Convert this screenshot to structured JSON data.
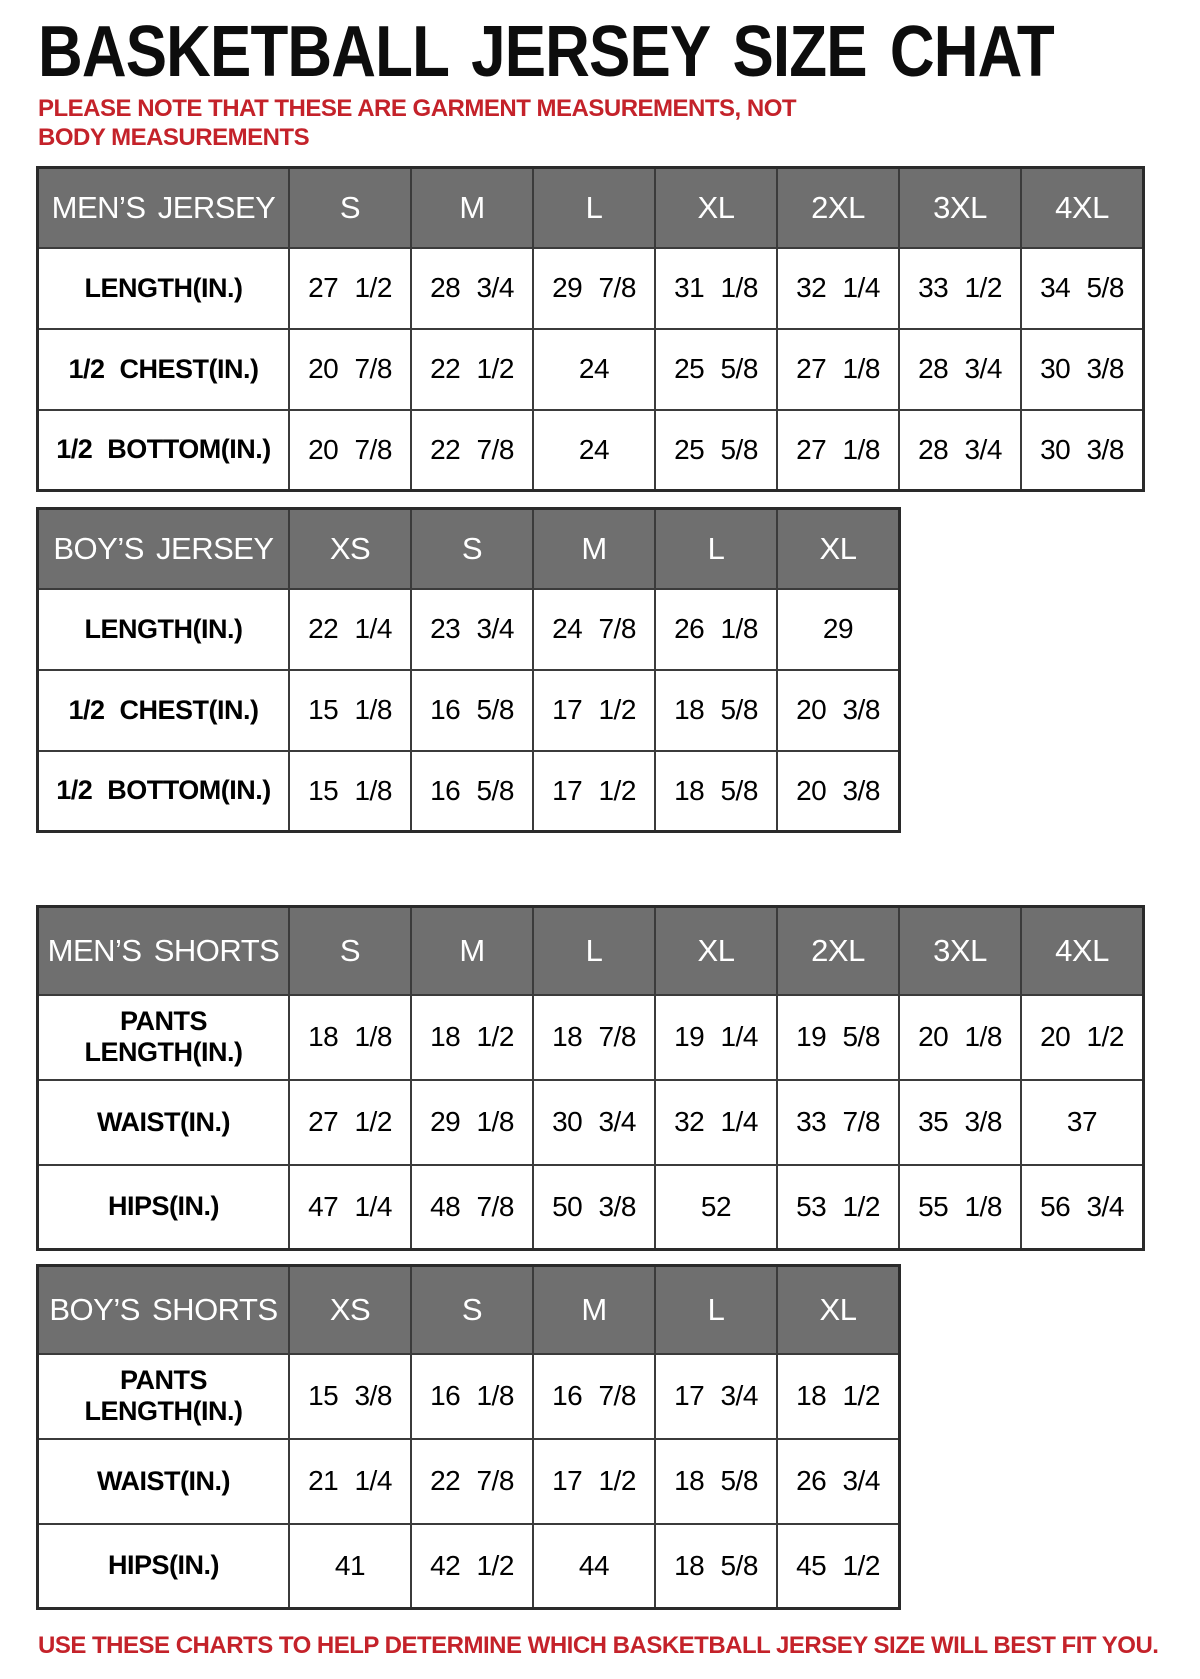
{
  "page": {
    "title": "BASKETBALL JERSEY SIZE CHAT",
    "note": "PLEASE NOTE THAT THESE ARE GARMENT MEASUREMENTS, NOT BODY MEASUREMENTS",
    "footer": "USE THESE CHARTS TO HELP DETERMINE WHICH BASKETBALL JERSEY SIZE WILL BEST FIT YOU.",
    "colors": {
      "accent_red": "#c4222a",
      "header_bg": "#6f6f6f",
      "header_text": "#ffffff",
      "border": "#3b3b3b"
    }
  },
  "tables": [
    {
      "id": "mens-jersey",
      "header": [
        "MEN’S JERSEY",
        "S",
        "M",
        "L",
        "XL",
        "2XL",
        "3XL",
        "4XL"
      ],
      "rows": [
        {
          "label": "LENGTH(IN.)",
          "values": [
            "27 1/2",
            "28 3/4",
            "29 7/8",
            "31 1/8",
            "32 1/4",
            "33 1/2",
            "34 5/8"
          ]
        },
        {
          "label": "1/2 CHEST(IN.)",
          "values": [
            "20 7/8",
            "22 1/2",
            "24",
            "25 5/8",
            "27 1/8",
            "28 3/4",
            "30 3/8"
          ]
        },
        {
          "label": "1/2 BOTTOM(IN.)",
          "values": [
            "20 7/8",
            "22 7/8",
            "24",
            "25 5/8",
            "27 1/8",
            "28 3/4",
            "30 3/8"
          ]
        }
      ]
    },
    {
      "id": "boys-jersey",
      "header": [
        "BOY’S JERSEY",
        "XS",
        "S",
        "M",
        "L",
        "XL"
      ],
      "rows": [
        {
          "label": "LENGTH(IN.)",
          "values": [
            "22 1/4",
            "23 3/4",
            "24 7/8",
            "26 1/8",
            "29"
          ]
        },
        {
          "label": "1/2 CHEST(IN.)",
          "values": [
            "15 1/8",
            "16 5/8",
            "17 1/2",
            "18 5/8",
            "20 3/8"
          ]
        },
        {
          "label": "1/2 BOTTOM(IN.)",
          "values": [
            "15 1/8",
            "16 5/8",
            "17 1/2",
            "18 5/8",
            "20 3/8"
          ]
        }
      ]
    },
    {
      "id": "mens-shorts",
      "header": [
        "MEN’S SHORTS",
        "S",
        "M",
        "L",
        "XL",
        "2XL",
        "3XL",
        "4XL"
      ],
      "rows": [
        {
          "label": "PANTS LENGTH(IN.)",
          "values": [
            "18 1/8",
            "18 1/2",
            "18 7/8",
            "19 1/4",
            "19 5/8",
            "20 1/8",
            "20 1/2"
          ]
        },
        {
          "label": "WAIST(IN.)",
          "values": [
            "27 1/2",
            "29 1/8",
            "30 3/4",
            "32 1/4",
            "33 7/8",
            "35 3/8",
            "37"
          ]
        },
        {
          "label": "HIPS(IN.)",
          "values": [
            "47 1/4",
            "48 7/8",
            "50 3/8",
            "52",
            "53 1/2",
            "55 1/8",
            "56 3/4"
          ]
        }
      ]
    },
    {
      "id": "boys-shorts",
      "header": [
        "BOY’S SHORTS",
        "XS",
        "S",
        "M",
        "L",
        "XL"
      ],
      "rows": [
        {
          "label": "PANTS LENGTH(IN.)",
          "values": [
            "15 3/8",
            "16 1/8",
            "16 7/8",
            "17 3/4",
            "18 1/2"
          ]
        },
        {
          "label": "WAIST(IN.)",
          "values": [
            "21 1/4",
            "22 7/8",
            "17 1/2",
            "18 5/8",
            "26 3/4"
          ]
        },
        {
          "label": "HIPS(IN.)",
          "values": [
            "41",
            "42 1/2",
            "44",
            "18 5/8",
            "45 1/2"
          ]
        }
      ]
    }
  ]
}
